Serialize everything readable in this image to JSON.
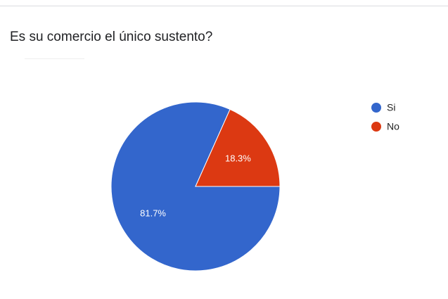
{
  "chart_data": {
    "type": "pie",
    "title": "Es su comercio el único sustento?",
    "categories": [
      "Si",
      "No"
    ],
    "values": [
      81.7,
      18.3
    ],
    "value_labels": [
      "81.7%",
      "18.3%"
    ],
    "colors": [
      "#3366cc",
      "#dc3912"
    ],
    "legend": "right"
  }
}
